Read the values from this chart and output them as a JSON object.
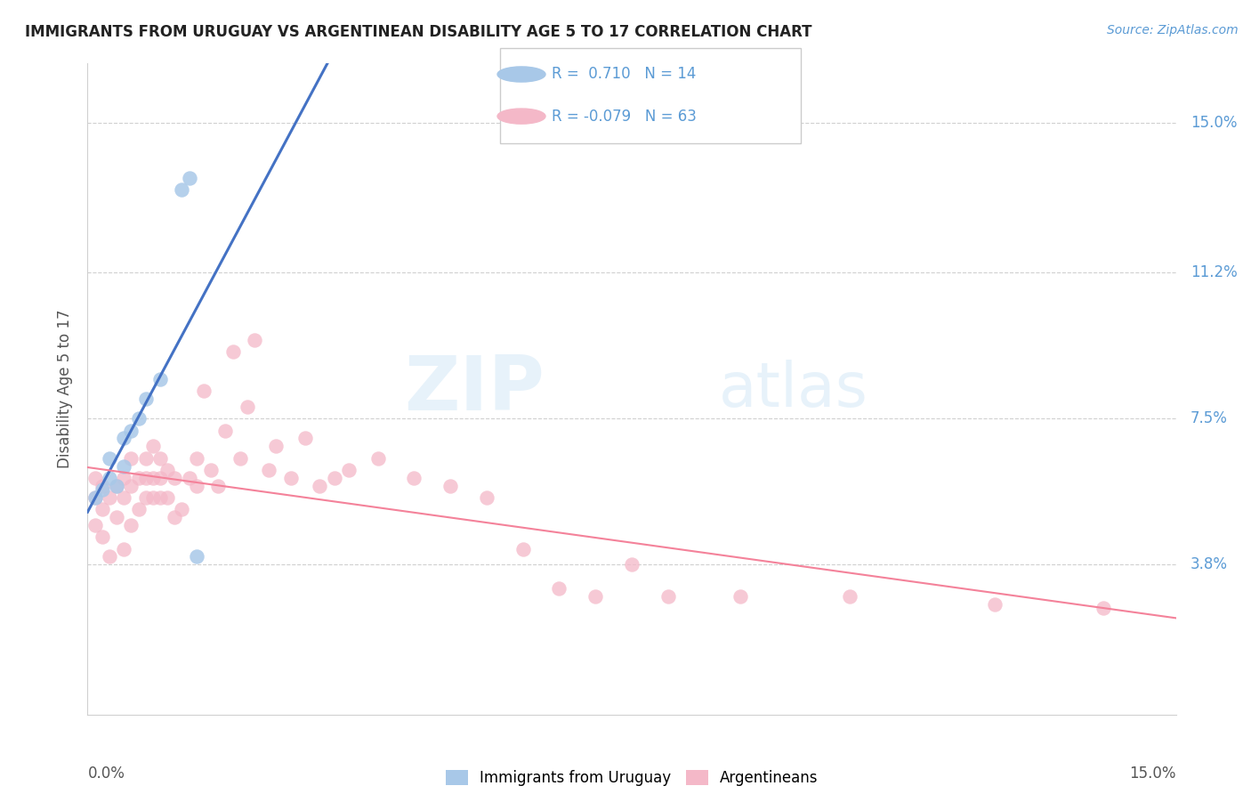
{
  "title": "IMMIGRANTS FROM URUGUAY VS ARGENTINEAN DISABILITY AGE 5 TO 17 CORRELATION CHART",
  "source": "Source: ZipAtlas.com",
  "ylabel": "Disability Age 5 to 17",
  "ytick_labels": [
    "15.0%",
    "11.2%",
    "7.5%",
    "3.8%"
  ],
  "ytick_values": [
    0.15,
    0.112,
    0.075,
    0.038
  ],
  "xlim": [
    0.0,
    0.15
  ],
  "ylim": [
    0.0,
    0.165
  ],
  "legend1_label": "Immigrants from Uruguay",
  "legend2_label": "Argentineans",
  "R1": "0.710",
  "N1": "14",
  "R2": "-0.079",
  "N2": "63",
  "color_uruguay": "#a8c8e8",
  "color_argentina": "#f4b8c8",
  "color_uruguay_line": "#4472c4",
  "color_argentina_line": "#f4829a",
  "watermark_zip": "ZIP",
  "watermark_atlas": "atlas",
  "uruguay_x": [
    0.001,
    0.002,
    0.003,
    0.003,
    0.004,
    0.005,
    0.005,
    0.006,
    0.007,
    0.008,
    0.01,
    0.013,
    0.014,
    0.015
  ],
  "uruguay_y": [
    0.055,
    0.057,
    0.06,
    0.065,
    0.058,
    0.063,
    0.07,
    0.072,
    0.075,
    0.08,
    0.085,
    0.133,
    0.136,
    0.04
  ],
  "argentina_x": [
    0.001,
    0.001,
    0.001,
    0.002,
    0.002,
    0.002,
    0.003,
    0.003,
    0.004,
    0.004,
    0.005,
    0.005,
    0.005,
    0.006,
    0.006,
    0.006,
    0.007,
    0.007,
    0.008,
    0.008,
    0.008,
    0.009,
    0.009,
    0.009,
    0.01,
    0.01,
    0.01,
    0.011,
    0.011,
    0.012,
    0.012,
    0.013,
    0.014,
    0.015,
    0.015,
    0.016,
    0.017,
    0.018,
    0.019,
    0.02,
    0.021,
    0.022,
    0.023,
    0.025,
    0.026,
    0.028,
    0.03,
    0.032,
    0.034,
    0.036,
    0.04,
    0.045,
    0.05,
    0.055,
    0.06,
    0.065,
    0.07,
    0.075,
    0.08,
    0.09,
    0.105,
    0.125,
    0.14
  ],
  "argentina_y": [
    0.048,
    0.055,
    0.06,
    0.045,
    0.052,
    0.058,
    0.04,
    0.055,
    0.05,
    0.058,
    0.042,
    0.055,
    0.06,
    0.048,
    0.058,
    0.065,
    0.052,
    0.06,
    0.055,
    0.06,
    0.065,
    0.055,
    0.06,
    0.068,
    0.055,
    0.06,
    0.065,
    0.055,
    0.062,
    0.05,
    0.06,
    0.052,
    0.06,
    0.058,
    0.065,
    0.082,
    0.062,
    0.058,
    0.072,
    0.092,
    0.065,
    0.078,
    0.095,
    0.062,
    0.068,
    0.06,
    0.07,
    0.058,
    0.06,
    0.062,
    0.065,
    0.06,
    0.058,
    0.055,
    0.042,
    0.032,
    0.03,
    0.038,
    0.03,
    0.03,
    0.03,
    0.028,
    0.027
  ]
}
